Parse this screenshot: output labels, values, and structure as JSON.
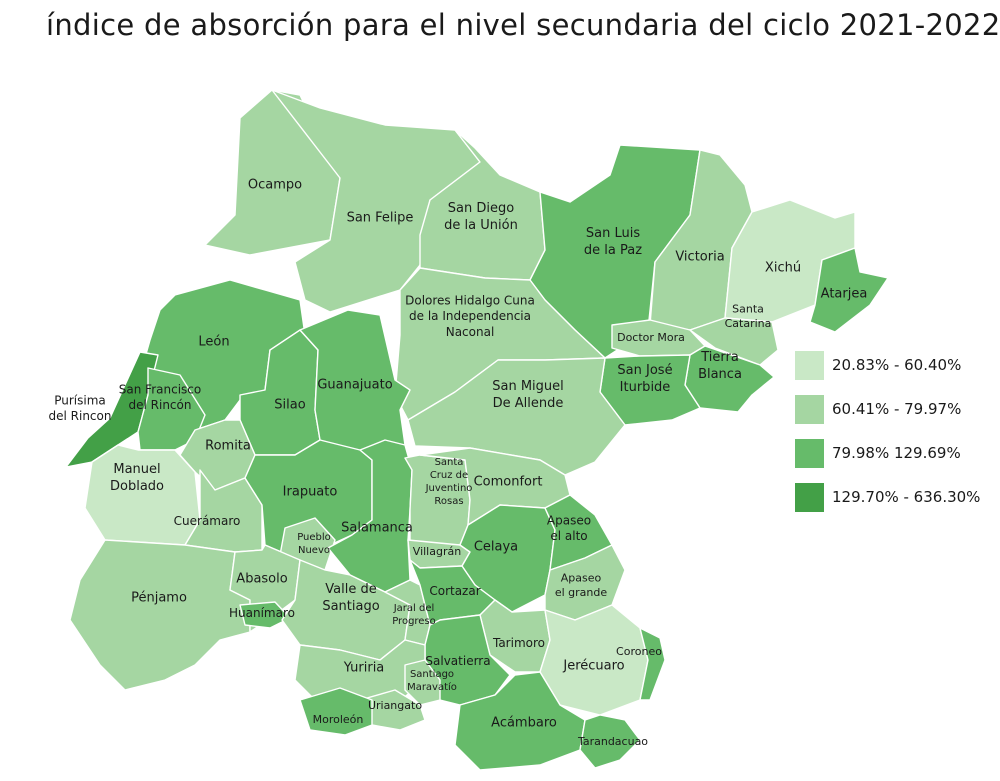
{
  "title": "índice de absorción para el nivel secundaria del ciclo 2021-2022",
  "colors": {
    "c1": "#c9e8c6",
    "c2": "#a5d6a2",
    "c3": "#66bb6a",
    "c4": "#43a047"
  },
  "legend": [
    {
      "label": "20.83% - 60.40%",
      "color": "#c9e8c6"
    },
    {
      "label": "60.41% - 79.97%",
      "color": "#a5d6a2"
    },
    {
      "label": "79.98% 129.69%",
      "color": "#66bb6a"
    },
    {
      "label": "129.70% - 636.30%",
      "color": "#43a047"
    }
  ],
  "municipalities": [
    {
      "id": "ocampo",
      "label": [
        "Ocampo"
      ],
      "class": "c2"
    },
    {
      "id": "san-felipe",
      "label": [
        "San Felipe"
      ],
      "class": "c2"
    },
    {
      "id": "san-diego",
      "label": [
        "San Diego",
        "de la Unión"
      ],
      "class": "c2"
    },
    {
      "id": "san-luis-paz",
      "label": [
        "San Luis",
        "de la Paz"
      ],
      "class": "c3"
    },
    {
      "id": "victoria",
      "label": [
        "Victoria"
      ],
      "class": "c2"
    },
    {
      "id": "xichu",
      "label": [
        "Xichú"
      ],
      "class": "c1"
    },
    {
      "id": "atarjea",
      "label": [
        "Atarjea"
      ],
      "class": "c3"
    },
    {
      "id": "santa-catarina",
      "label": [
        "Santa",
        "Catarina"
      ],
      "class": "c2"
    },
    {
      "id": "doctor-mora",
      "label": [
        "Doctor Mora"
      ],
      "class": "c2"
    },
    {
      "id": "tierra-blanca",
      "label": [
        "Tierra",
        "Blanca"
      ],
      "class": "c3"
    },
    {
      "id": "san-jose-iturbide",
      "label": [
        "San José",
        "Iturbide"
      ],
      "class": "c3"
    },
    {
      "id": "dolores",
      "label": [
        "Dolores Hidalgo Cuna",
        "de la Independencia",
        "Naconal"
      ],
      "class": "c2"
    },
    {
      "id": "san-miguel",
      "label": [
        "San Miguel",
        "De Allende"
      ],
      "class": "c2"
    },
    {
      "id": "leon",
      "label": [
        "León"
      ],
      "class": "c3"
    },
    {
      "id": "purisima",
      "label": [
        "Purísima",
        "del Rincon"
      ],
      "class": "c4"
    },
    {
      "id": "san-francisco",
      "label": [
        "San Francisco",
        "del Rincón"
      ],
      "class": "c3"
    },
    {
      "id": "silao",
      "label": [
        "Silao"
      ],
      "class": "c3"
    },
    {
      "id": "guanajuato",
      "label": [
        "Guanajuato"
      ],
      "class": "c3"
    },
    {
      "id": "romita",
      "label": [
        "Romita"
      ],
      "class": "c2"
    },
    {
      "id": "manuel-doblado",
      "label": [
        "Manuel",
        "Doblado"
      ],
      "class": "c1"
    },
    {
      "id": "cueramaro",
      "label": [
        "Cuerámaro"
      ],
      "class": "c2"
    },
    {
      "id": "irapuato",
      "label": [
        "Irapuato"
      ],
      "class": "c3"
    },
    {
      "id": "pueblo-nuevo",
      "label": [
        "Pueblo",
        "Nuevo"
      ],
      "class": "c2"
    },
    {
      "id": "salamanca",
      "label": [
        "Salamanca"
      ],
      "class": "c3"
    },
    {
      "id": "santa-cruz",
      "label": [
        "Santa",
        "Cruz de",
        "Juventino",
        "Rosas"
      ],
      "class": "c2"
    },
    {
      "id": "villagran",
      "label": [
        "Villagrán"
      ],
      "class": "c2"
    },
    {
      "id": "comonfort",
      "label": [
        "Comonfort"
      ],
      "class": "c2"
    },
    {
      "id": "celaya",
      "label": [
        "Celaya"
      ],
      "class": "c3"
    },
    {
      "id": "apaseo-alto",
      "label": [
        "Apaseo",
        "el alto"
      ],
      "class": "c3"
    },
    {
      "id": "apaseo-grande",
      "label": [
        "Apaseo",
        "el grande"
      ],
      "class": "c2"
    },
    {
      "id": "penjamo",
      "label": [
        "Pénjamo"
      ],
      "class": "c2"
    },
    {
      "id": "abasolo",
      "label": [
        "Abasolo"
      ],
      "class": "c2"
    },
    {
      "id": "huanimaro",
      "label": [
        "Huanímaro"
      ],
      "class": "c3"
    },
    {
      "id": "valle-santiago",
      "label": [
        "Valle de",
        "Santiago"
      ],
      "class": "c2"
    },
    {
      "id": "jaral",
      "label": [
        "Jaral del",
        "Progreso"
      ],
      "class": "c2"
    },
    {
      "id": "cortazar",
      "label": [
        "Cortazar"
      ],
      "class": "c3"
    },
    {
      "id": "tarimoro",
      "label": [
        "Tarimoro"
      ],
      "class": "c2"
    },
    {
      "id": "jerecuaro",
      "label": [
        "Jerécuaro"
      ],
      "class": "c1"
    },
    {
      "id": "coroneo",
      "label": [
        "Coroneo"
      ],
      "class": "c3"
    },
    {
      "id": "salvatierra",
      "label": [
        "Salvatierra"
      ],
      "class": "c3"
    },
    {
      "id": "yuriria",
      "label": [
        "Yuriria"
      ],
      "class": "c2"
    },
    {
      "id": "santiago-maravatio",
      "label": [
        "Santiago",
        "Maravatío"
      ],
      "class": "c2"
    },
    {
      "id": "uriangato",
      "label": [
        "Uriangato"
      ],
      "class": "c2"
    },
    {
      "id": "moroleon",
      "label": [
        "Moroleón"
      ],
      "class": "c3"
    },
    {
      "id": "acambaro",
      "label": [
        "Acámbaro"
      ],
      "class": "c3"
    },
    {
      "id": "tarandacuao",
      "label": [
        "Tarandacuao"
      ],
      "class": "c3"
    }
  ]
}
